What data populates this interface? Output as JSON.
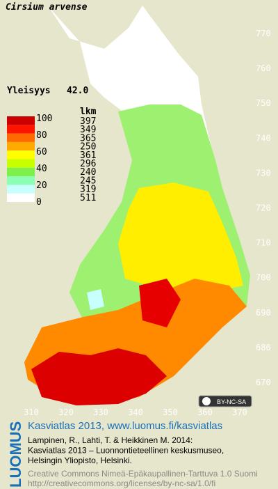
{
  "header": {
    "title": "Cirsium arvense",
    "frequency_label": "Yleisyys",
    "frequency_value": "42.0"
  },
  "legend": {
    "scale_labels": [
      "100",
      "80",
      "60",
      "40",
      "20",
      "0"
    ],
    "count_header": "lkm",
    "counts": [
      "397",
      "349",
      "365",
      "250",
      "361",
      "296",
      "240",
      "245",
      "319",
      "511"
    ],
    "colors": [
      "#cc0000",
      "#ff1400",
      "#ff6a00",
      "#ffaa00",
      "#ffff00",
      "#c8ff00",
      "#7ef04a",
      "#8cffb4",
      "#c8ffff",
      "#ffffff"
    ]
  },
  "map_axes": {
    "right": [
      "770",
      "760",
      "750",
      "740",
      "730",
      "720",
      "710",
      "700",
      "690",
      "680",
      "670"
    ],
    "bottom": [
      "310",
      "320",
      "330",
      "340",
      "350",
      "360",
      "370"
    ]
  },
  "license_badge": "BY-NC-SA",
  "footer": {
    "logo": "LUOMUS",
    "title": "Kasviatlas 2013, www.luomus.fi/kasviatlas",
    "citation": [
      "Lampinen, R., Lahti, T. & Heikkinen M. 2014:",
      "Kasviatlas 2013 – Luonnontieteellinen keskusmuseo,",
      "Helsingin Yliopisto, Helsinki."
    ],
    "license": [
      "Creative Commons Nimeä-Epäkaupallinen-Tarttuva 1.0 Suomi",
      "http://creativecommons.org/licenses/by-nc-sa/1.0/fi"
    ]
  }
}
